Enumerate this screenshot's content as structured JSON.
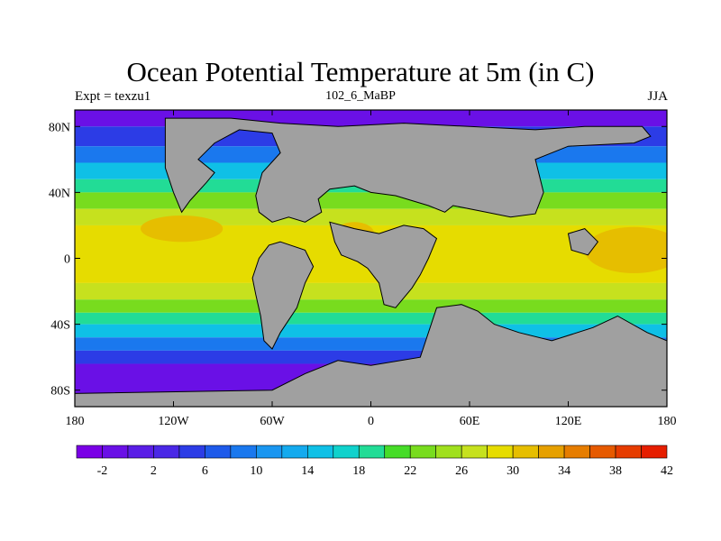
{
  "title": "Ocean Potential Temperature at 5m (in C)",
  "subtitle_left": "Expt = texzu1",
  "subtitle_center": "102_6_MaBP",
  "subtitle_right": "JJA",
  "lat_labels": [
    "80N",
    "40N",
    "0",
    "40S",
    "80S"
  ],
  "lon_labels": [
    "180",
    "120W",
    "60W",
    "0",
    "60E",
    "120E",
    "180"
  ],
  "colorbar": {
    "colors": [
      "#7a00e6",
      "#6a10e6",
      "#5a1ee6",
      "#4a28e6",
      "#2c3ce6",
      "#1e5aea",
      "#1a78ee",
      "#1a96f0",
      "#14aaee",
      "#0fc0e6",
      "#10d2cc",
      "#22dc96",
      "#46dc28",
      "#78dc1e",
      "#a0e01e",
      "#c6e11e",
      "#e6dc00",
      "#e6be00",
      "#e6a000",
      "#e67d00",
      "#e65a00",
      "#e63c00",
      "#e61e00"
    ],
    "labels": [
      "-2",
      "2",
      "6",
      "10",
      "14",
      "18",
      "22",
      "26",
      "30",
      "34",
      "38",
      "42"
    ]
  },
  "map_data": {
    "lat_range": [
      -90,
      90
    ],
    "lon_range": [
      -180,
      180
    ],
    "land_color": "#a0a0a0",
    "temperature_bands": [
      {
        "lat_from": 90,
        "lat_to": 80,
        "color": "#6a10e6"
      },
      {
        "lat_from": 80,
        "lat_to": 68,
        "color": "#2c3ce6"
      },
      {
        "lat_from": 68,
        "lat_to": 58,
        "color": "#1a78ee"
      },
      {
        "lat_from": 58,
        "lat_to": 48,
        "color": "#0fc0e6"
      },
      {
        "lat_from": 48,
        "lat_to": 40,
        "color": "#22dc96"
      },
      {
        "lat_from": 40,
        "lat_to": 30,
        "color": "#78dc1e"
      },
      {
        "lat_from": 30,
        "lat_to": 20,
        "color": "#c6e11e"
      },
      {
        "lat_from": 20,
        "lat_to": -15,
        "color": "#e6dc00"
      },
      {
        "lat_from": -15,
        "lat_to": -25,
        "color": "#c6e11e"
      },
      {
        "lat_from": -25,
        "lat_to": -33,
        "color": "#78dc1e"
      },
      {
        "lat_from": -33,
        "lat_to": -40,
        "color": "#22dc96"
      },
      {
        "lat_from": -40,
        "lat_to": -48,
        "color": "#0fc0e6"
      },
      {
        "lat_from": -48,
        "lat_to": -56,
        "color": "#1a78ee"
      },
      {
        "lat_from": -56,
        "lat_to": -64,
        "color": "#2c3ce6"
      },
      {
        "lat_from": -64,
        "lat_to": -90,
        "color": "#6a10e6"
      }
    ],
    "warm_pools": [
      {
        "lon": 160,
        "lat": 5,
        "rlon": 30,
        "rlat": 14,
        "color": "#e6be00"
      },
      {
        "lon": -115,
        "lat": 18,
        "rlon": 25,
        "rlat": 8,
        "color": "#e6be00"
      },
      {
        "lon": -10,
        "lat": 15,
        "rlon": 12,
        "rlat": 7,
        "color": "#e6be00"
      }
    ],
    "land_polygons": [
      {
        "name": "north-america-eurasia",
        "points": [
          [
            -125,
            85
          ],
          [
            -85,
            85
          ],
          [
            -55,
            82
          ],
          [
            -20,
            80
          ],
          [
            20,
            82
          ],
          [
            60,
            80
          ],
          [
            100,
            78
          ],
          [
            130,
            80
          ],
          [
            165,
            80
          ],
          [
            170,
            74
          ],
          [
            160,
            70
          ],
          [
            120,
            68
          ],
          [
            100,
            60
          ],
          [
            105,
            40
          ],
          [
            100,
            27
          ],
          [
            85,
            25
          ],
          [
            70,
            28
          ],
          [
            50,
            32
          ],
          [
            45,
            28
          ],
          [
            35,
            32
          ],
          [
            25,
            35
          ],
          [
            15,
            38
          ],
          [
            0,
            40
          ],
          [
            -10,
            44
          ],
          [
            -25,
            42
          ],
          [
            -32,
            36
          ],
          [
            -30,
            28
          ],
          [
            -40,
            22
          ],
          [
            -50,
            25
          ],
          [
            -60,
            22
          ],
          [
            -68,
            28
          ],
          [
            -70,
            38
          ],
          [
            -66,
            52
          ],
          [
            -55,
            64
          ],
          [
            -60,
            76
          ],
          [
            -80,
            78
          ],
          [
            -95,
            70
          ],
          [
            -105,
            60
          ],
          [
            -95,
            52
          ],
          [
            -100,
            46
          ],
          [
            -110,
            35
          ],
          [
            -115,
            28
          ],
          [
            -120,
            40
          ],
          [
            -125,
            55
          ],
          [
            -125,
            70
          ]
        ]
      },
      {
        "name": "south-america",
        "points": [
          [
            -55,
            10
          ],
          [
            -40,
            5
          ],
          [
            -35,
            -5
          ],
          [
            -40,
            -15
          ],
          [
            -45,
            -30
          ],
          [
            -55,
            -45
          ],
          [
            -60,
            -55
          ],
          [
            -65,
            -50
          ],
          [
            -67,
            -35
          ],
          [
            -70,
            -22
          ],
          [
            -72,
            -12
          ],
          [
            -68,
            0
          ],
          [
            -62,
            8
          ]
        ]
      },
      {
        "name": "africa",
        "points": [
          [
            -25,
            22
          ],
          [
            -10,
            18
          ],
          [
            5,
            15
          ],
          [
            20,
            20
          ],
          [
            32,
            18
          ],
          [
            40,
            12
          ],
          [
            35,
            0
          ],
          [
            30,
            -10
          ],
          [
            25,
            -18
          ],
          [
            15,
            -30
          ],
          [
            8,
            -28
          ],
          [
            5,
            -15
          ],
          [
            -2,
            -6
          ],
          [
            -8,
            -2
          ],
          [
            -18,
            2
          ],
          [
            -22,
            10
          ]
        ]
      },
      {
        "name": "australia-antarctica",
        "points": [
          [
            40,
            -30
          ],
          [
            55,
            -28
          ],
          [
            65,
            -32
          ],
          [
            75,
            -40
          ],
          [
            90,
            -45
          ],
          [
            110,
            -50
          ],
          [
            135,
            -42
          ],
          [
            150,
            -35
          ],
          [
            168,
            -45
          ],
          [
            180,
            -50
          ],
          [
            180,
            -90
          ],
          [
            -180,
            -90
          ],
          [
            -180,
            -82
          ],
          [
            -60,
            -80
          ],
          [
            -40,
            -70
          ],
          [
            -20,
            -62
          ],
          [
            0,
            -65
          ],
          [
            30,
            -60
          ]
        ]
      },
      {
        "name": "east-asia-island",
        "points": [
          [
            120,
            15
          ],
          [
            130,
            18
          ],
          [
            138,
            10
          ],
          [
            132,
            2
          ],
          [
            122,
            5
          ]
        ]
      }
    ]
  }
}
